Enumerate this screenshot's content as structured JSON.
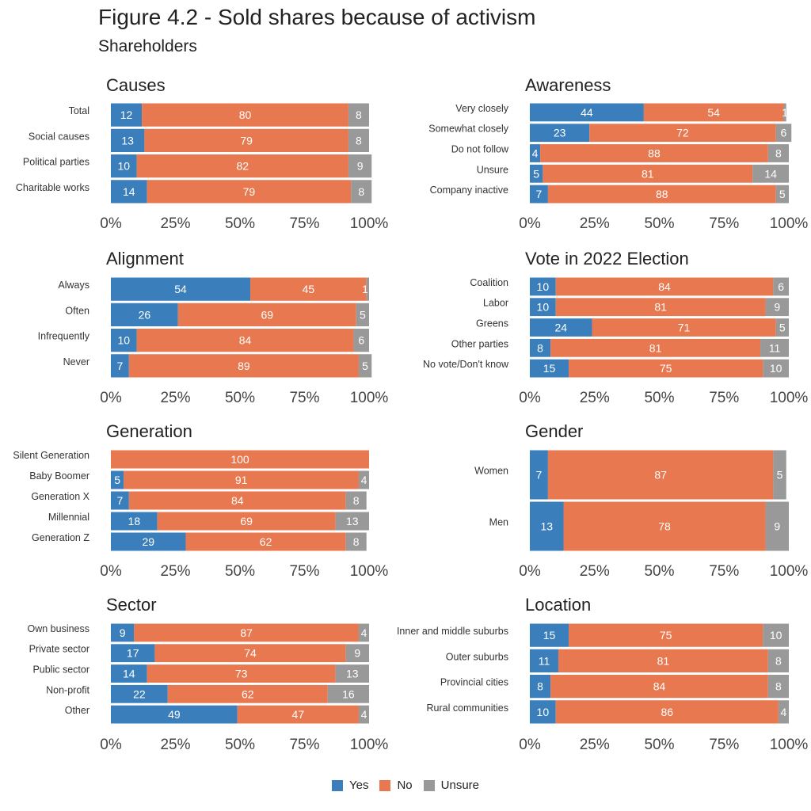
{
  "title": "Figure 4.2 - Sold shares because of activism",
  "subtitle": "Shareholders",
  "colors": {
    "yes": "#3a7fbb",
    "no": "#e8784f",
    "unsure": "#999999"
  },
  "legend": [
    {
      "key": "yes",
      "label": "Yes"
    },
    {
      "key": "no",
      "label": "No"
    },
    {
      "key": "unsure",
      "label": "Unsure"
    }
  ],
  "axis_ticks": [
    "0%",
    "25%",
    "50%",
    "75%",
    "100%"
  ],
  "chart_data": [
    {
      "type": "bar",
      "stacked": true,
      "orientation": "horizontal",
      "title": "Causes",
      "xlim": [
        0,
        100
      ],
      "categories": [
        "Total",
        "Social causes",
        "Political parties",
        "Charitable works"
      ],
      "series": [
        {
          "name": "Yes",
          "values": [
            12,
            13,
            10,
            14
          ]
        },
        {
          "name": "No",
          "values": [
            80,
            79,
            82,
            79
          ]
        },
        {
          "name": "Unsure",
          "values": [
            8,
            8,
            9,
            8
          ]
        }
      ]
    },
    {
      "type": "bar",
      "stacked": true,
      "orientation": "horizontal",
      "title": "Awareness",
      "xlim": [
        0,
        100
      ],
      "categories": [
        "Very closely",
        "Somewhat closely",
        "Do not follow",
        "Unsure",
        "Company inactive"
      ],
      "series": [
        {
          "name": "Yes",
          "values": [
            44,
            23,
            4,
            5,
            7
          ]
        },
        {
          "name": "No",
          "values": [
            54,
            72,
            88,
            81,
            88
          ]
        },
        {
          "name": "Unsure",
          "values": [
            1,
            6,
            8,
            14,
            5
          ]
        }
      ]
    },
    {
      "type": "bar",
      "stacked": true,
      "orientation": "horizontal",
      "title": "Alignment",
      "xlim": [
        0,
        100
      ],
      "categories": [
        "Always",
        "Often",
        "Infrequently",
        "Never"
      ],
      "series": [
        {
          "name": "Yes",
          "values": [
            54,
            26,
            10,
            7
          ]
        },
        {
          "name": "No",
          "values": [
            45,
            69,
            84,
            89
          ]
        },
        {
          "name": "Unsure",
          "values": [
            1,
            5,
            6,
            5
          ]
        }
      ]
    },
    {
      "type": "bar",
      "stacked": true,
      "orientation": "horizontal",
      "title": "Vote in 2022 Election",
      "xlim": [
        0,
        100
      ],
      "categories": [
        "Coalition",
        "Labor",
        "Greens",
        "Other parties",
        "No vote/Don't know"
      ],
      "series": [
        {
          "name": "Yes",
          "values": [
            10,
            10,
            24,
            8,
            15
          ]
        },
        {
          "name": "No",
          "values": [
            84,
            81,
            71,
            81,
            75
          ]
        },
        {
          "name": "Unsure",
          "values": [
            6,
            9,
            5,
            11,
            10
          ]
        }
      ]
    },
    {
      "type": "bar",
      "stacked": true,
      "orientation": "horizontal",
      "title": "Generation",
      "xlim": [
        0,
        100
      ],
      "categories": [
        "Silent Generation",
        "Baby Boomer",
        "Generation X",
        "Millennial",
        "Generation Z"
      ],
      "series": [
        {
          "name": "Yes",
          "values": [
            0,
            5,
            7,
            18,
            29
          ]
        },
        {
          "name": "No",
          "values": [
            100,
            91,
            84,
            69,
            62
          ]
        },
        {
          "name": "Unsure",
          "values": [
            0,
            4,
            8,
            13,
            8
          ]
        }
      ]
    },
    {
      "type": "bar",
      "stacked": true,
      "orientation": "horizontal",
      "title": "Gender",
      "xlim": [
        0,
        100
      ],
      "categories": [
        "Women",
        "Men"
      ],
      "series": [
        {
          "name": "Yes",
          "values": [
            7,
            13
          ]
        },
        {
          "name": "No",
          "values": [
            87,
            78
          ]
        },
        {
          "name": "Unsure",
          "values": [
            5,
            9
          ]
        }
      ]
    },
    {
      "type": "bar",
      "stacked": true,
      "orientation": "horizontal",
      "title": "Sector",
      "xlim": [
        0,
        100
      ],
      "categories": [
        "Own business",
        "Private sector",
        "Public sector",
        "Non-profit",
        "Other"
      ],
      "series": [
        {
          "name": "Yes",
          "values": [
            9,
            17,
            14,
            22,
            49
          ]
        },
        {
          "name": "No",
          "values": [
            87,
            74,
            73,
            62,
            47
          ]
        },
        {
          "name": "Unsure",
          "values": [
            4,
            9,
            13,
            16,
            4
          ]
        }
      ]
    },
    {
      "type": "bar",
      "stacked": true,
      "orientation": "horizontal",
      "title": "Location",
      "xlim": [
        0,
        100
      ],
      "categories": [
        "Inner and middle suburbs",
        "Outer suburbs",
        "Provincial cities",
        "Rural communities"
      ],
      "series": [
        {
          "name": "Yes",
          "values": [
            15,
            11,
            8,
            10
          ]
        },
        {
          "name": "No",
          "values": [
            75,
            81,
            84,
            86
          ]
        },
        {
          "name": "Unsure",
          "values": [
            10,
            8,
            8,
            4
          ]
        }
      ]
    }
  ]
}
